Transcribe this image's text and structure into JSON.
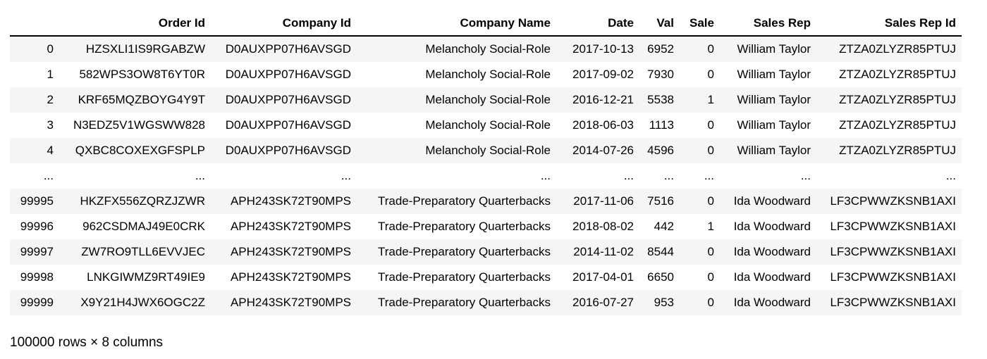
{
  "table": {
    "columns": [
      "",
      "Order Id",
      "Company Id",
      "Company Name",
      "Date",
      "Val",
      "Sale",
      "Sales Rep",
      "Sales Rep Id"
    ],
    "rows": [
      [
        "0",
        "HZSXLI1IS9RGABZW",
        "D0AUXPP07H6AVSGD",
        "Melancholy Social-Role",
        "2017-10-13",
        "6952",
        "0",
        "William Taylor",
        "ZTZA0ZLYZR85PTUJ"
      ],
      [
        "1",
        "582WPS3OW8T6YT0R",
        "D0AUXPP07H6AVSGD",
        "Melancholy Social-Role",
        "2017-09-02",
        "7930",
        "0",
        "William Taylor",
        "ZTZA0ZLYZR85PTUJ"
      ],
      [
        "2",
        "KRF65MQZBOYG4Y9T",
        "D0AUXPP07H6AVSGD",
        "Melancholy Social-Role",
        "2016-12-21",
        "5538",
        "1",
        "William Taylor",
        "ZTZA0ZLYZR85PTUJ"
      ],
      [
        "3",
        "N3EDZ5V1WGSWW828",
        "D0AUXPP07H6AVSGD",
        "Melancholy Social-Role",
        "2018-06-03",
        "1113",
        "0",
        "William Taylor",
        "ZTZA0ZLYZR85PTUJ"
      ],
      [
        "4",
        "QXBC8COXEXGFSPLP",
        "D0AUXPP07H6AVSGD",
        "Melancholy Social-Role",
        "2014-07-26",
        "4596",
        "0",
        "William Taylor",
        "ZTZA0ZLYZR85PTUJ"
      ],
      [
        "...",
        "...",
        "...",
        "...",
        "...",
        "...",
        "...",
        "...",
        "..."
      ],
      [
        "99995",
        "HKZFX556ZQRZJZWR",
        "APH243SK72T90MPS",
        "Trade-Preparatory Quarterbacks",
        "2017-11-06",
        "7516",
        "0",
        "Ida Woodward",
        "LF3CPWWZKSNB1AXI"
      ],
      [
        "99996",
        "962CSDMAJ49E0CRK",
        "APH243SK72T90MPS",
        "Trade-Preparatory Quarterbacks",
        "2018-08-02",
        "442",
        "1",
        "Ida Woodward",
        "LF3CPWWZKSNB1AXI"
      ],
      [
        "99997",
        "ZW7RO9TLL6EVVJEC",
        "APH243SK72T90MPS",
        "Trade-Preparatory Quarterbacks",
        "2014-11-02",
        "8544",
        "0",
        "Ida Woodward",
        "LF3CPWWZKSNB1AXI"
      ],
      [
        "99998",
        "LNKGIWMZ9RT49IE9",
        "APH243SK72T90MPS",
        "Trade-Preparatory Quarterbacks",
        "2017-04-01",
        "6650",
        "0",
        "Ida Woodward",
        "LF3CPWWZKSNB1AXI"
      ],
      [
        "99999",
        "X9Y21H4JWX6OGC2Z",
        "APH243SK72T90MPS",
        "Trade-Preparatory Quarterbacks",
        "2016-07-27",
        "953",
        "0",
        "Ida Woodward",
        "LF3CPWWZKSNB1AXI"
      ]
    ]
  },
  "footer": {
    "shape_text": "100000 rows × 8 columns"
  },
  "colors": {
    "stripe": "#f5f5f5",
    "header_rule": "#000000"
  }
}
